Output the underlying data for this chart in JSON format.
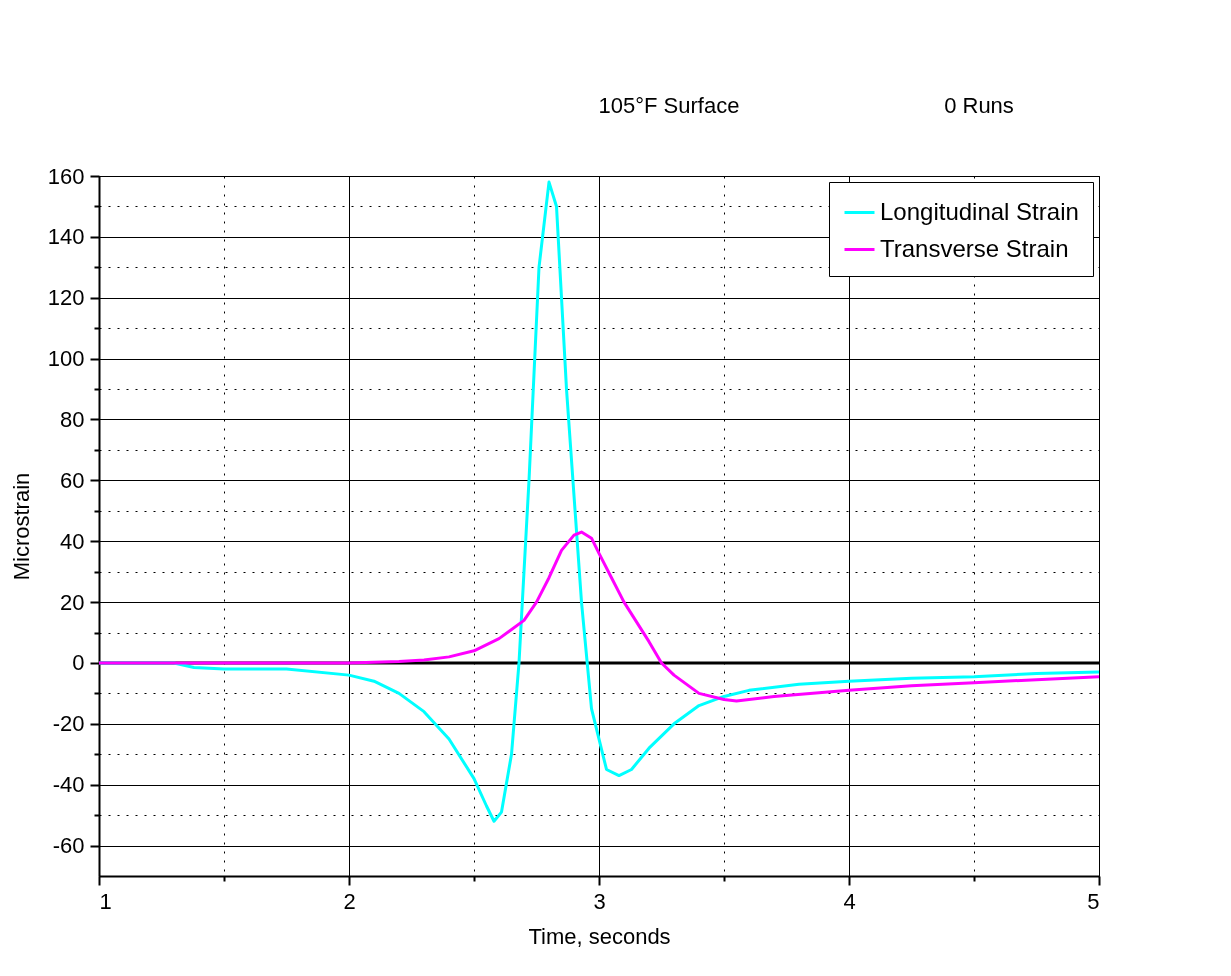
{
  "chart_data": {
    "type": "line",
    "title": "105°F Surface",
    "subtitle": "0 Runs",
    "xlabel": "Time, seconds",
    "ylabel": "Microstrain",
    "xlim": [
      1,
      5
    ],
    "xticks": [
      1,
      {
        "value": 1.5,
        "label": null
      },
      2,
      {
        "value": 2.5,
        "label": null
      },
      3,
      {
        "value": 3.5,
        "label": null
      },
      4,
      {
        "value": 4.5,
        "label": null
      },
      5
    ],
    "ylim": [
      -70,
      160
    ],
    "yticks": [
      -60,
      {
        "value": -50,
        "label": null
      },
      -40,
      {
        "value": -30,
        "label": null
      },
      -20,
      {
        "value": -10,
        "label": null
      },
      0,
      {
        "value": 10,
        "label": null
      },
      20,
      {
        "value": 30,
        "label": null
      },
      40,
      {
        "value": 50,
        "label": null
      },
      60,
      {
        "value": 70,
        "label": null
      },
      80,
      {
        "value": 90,
        "label": null
      },
      100,
      {
        "value": 110,
        "label": null
      },
      120,
      {
        "value": 130,
        "label": null
      },
      140,
      {
        "value": 150,
        "label": null
      },
      160
    ],
    "grid": true,
    "legend": "top right",
    "line_style": "solid",
    "marker": "none",
    "ref_lines": [
      {
        "axis": "y",
        "value": 0,
        "color": "#000000"
      }
    ],
    "series": [
      {
        "name": "Longitudinal Strain",
        "color": "#00ffff",
        "x": [
          1.0,
          1.3,
          1.38,
          1.5,
          1.75,
          2.0,
          2.1,
          2.2,
          2.3,
          2.4,
          2.5,
          2.55,
          2.58,
          2.61,
          2.65,
          2.68,
          2.72,
          2.76,
          2.8,
          2.83,
          2.87,
          2.93,
          2.97,
          3.03,
          3.08,
          3.13,
          3.2,
          3.3,
          3.4,
          3.5,
          3.6,
          3.8,
          4.0,
          4.25,
          4.5,
          4.75,
          5.0
        ],
        "values": [
          0,
          0,
          -1.5,
          -2,
          -2,
          -4,
          -6,
          -10,
          -16,
          -25,
          -38,
          -47,
          -52,
          -49,
          -30,
          0,
          60,
          130,
          158,
          150,
          90,
          20,
          -15,
          -35,
          -37,
          -35,
          -28,
          -20,
          -14,
          -11,
          -9,
          -7,
          -6,
          -5,
          -4.5,
          -3.5,
          -3
        ]
      },
      {
        "name": "Transverse Strain",
        "color": "#ff00ff",
        "x": [
          1.0,
          1.5,
          2.0,
          2.2,
          2.3,
          2.4,
          2.5,
          2.6,
          2.7,
          2.75,
          2.8,
          2.85,
          2.9,
          2.93,
          2.97,
          3.0,
          3.05,
          3.1,
          3.2,
          3.25,
          3.3,
          3.4,
          3.5,
          3.55,
          3.7,
          4.0,
          4.25,
          4.5,
          4.75,
          5.0
        ],
        "values": [
          0,
          0,
          0,
          0.5,
          1,
          2,
          4,
          8,
          14,
          20,
          28,
          37,
          42,
          43,
          41,
          36,
          28,
          20,
          7,
          0,
          -4,
          -10,
          -12,
          -12.5,
          -11,
          -9,
          -7.5,
          -6.5,
          -5.5,
          -4.5
        ]
      }
    ]
  }
}
